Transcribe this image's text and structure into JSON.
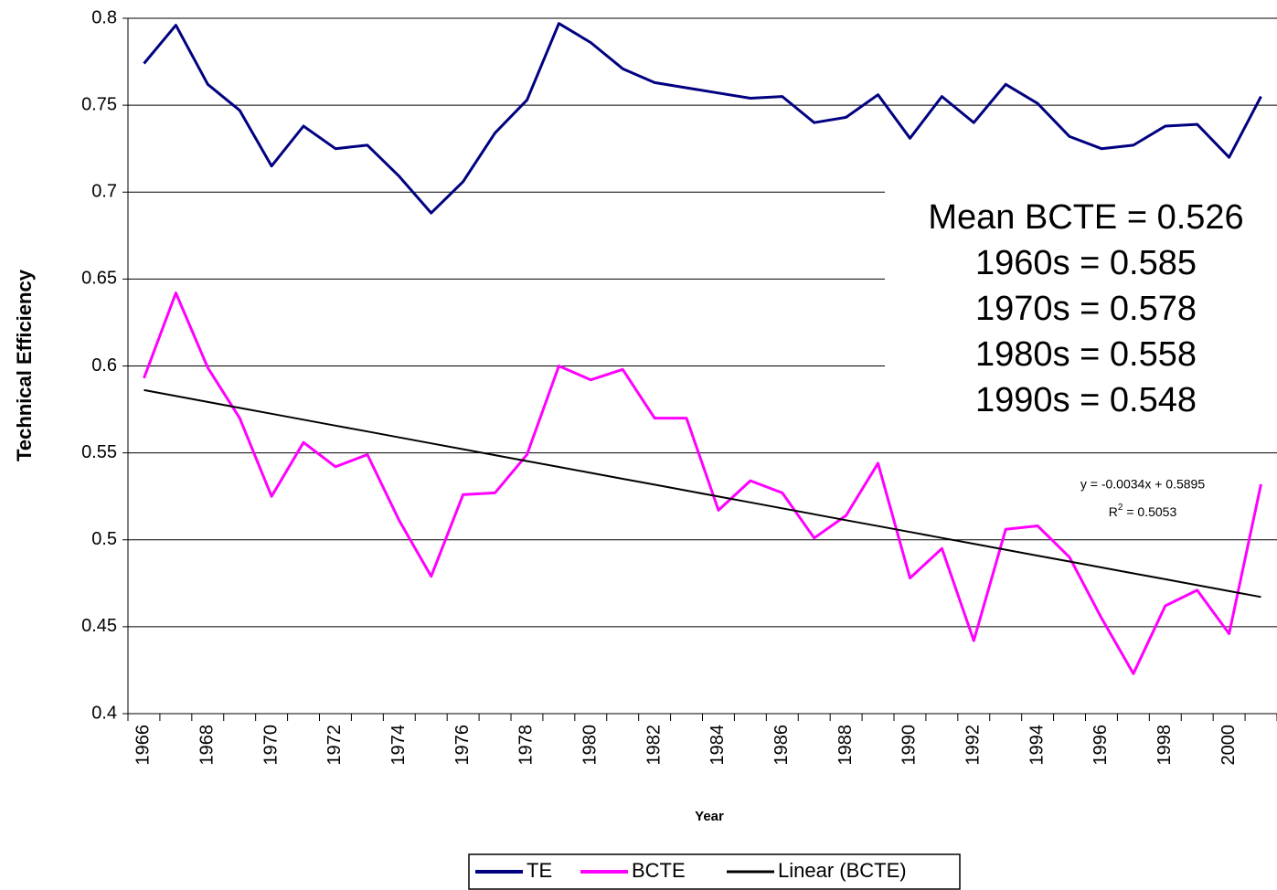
{
  "chart_data": {
    "type": "line",
    "y_label": "Technical Efficiency",
    "x_label": "Year",
    "categories": [
      "1966",
      null,
      "1968",
      null,
      "1970",
      null,
      "1972",
      null,
      "1974",
      null,
      "1976",
      null,
      "1978",
      null,
      "1980",
      null,
      "1982",
      null,
      "1984",
      null,
      "1986",
      null,
      "1988",
      null,
      "1990",
      null,
      "1992",
      null,
      "1994",
      null,
      "1996",
      null,
      "1998",
      null,
      "2000",
      null
    ],
    "series": [
      {
        "name": "TE",
        "color": "#000080",
        "width": 3,
        "values": [
          0.774,
          0.796,
          0.762,
          0.747,
          0.715,
          0.738,
          0.725,
          0.727,
          0.709,
          0.688,
          0.706,
          0.734,
          0.753,
          0.797,
          0.786,
          0.771,
          0.763,
          0.76,
          0.757,
          0.754,
          0.755,
          0.74,
          0.743,
          0.756,
          0.731,
          0.755,
          0.74,
          0.762,
          0.751,
          0.732,
          0.725,
          0.727,
          0.738,
          0.739,
          0.72,
          0.755
        ]
      },
      {
        "name": "BCTE",
        "color": "#ff00ff",
        "width": 3,
        "values": [
          0.593,
          0.642,
          0.599,
          0.57,
          0.525,
          0.556,
          0.542,
          0.549,
          0.511,
          0.479,
          0.526,
          0.527,
          0.549,
          0.6,
          0.592,
          0.598,
          0.57,
          0.57,
          0.517,
          0.534,
          0.527,
          0.501,
          0.514,
          0.544,
          0.478,
          0.495,
          0.442,
          0.506,
          0.508,
          0.49,
          0.455,
          0.423,
          0.462,
          0.471,
          0.446,
          0.532
        ]
      },
      {
        "name": "Linear (BCTE)",
        "color": "#000000",
        "width": 2,
        "values": [
          0.5861,
          0.5827,
          0.5793,
          0.5759,
          0.5725,
          0.5691,
          0.5657,
          0.5623,
          0.5589,
          0.5555,
          0.5521,
          0.5487,
          0.5453,
          0.5419,
          0.5385,
          0.5351,
          0.5317,
          0.5283,
          0.5249,
          0.5215,
          0.5181,
          0.5147,
          0.5113,
          0.5079,
          0.5045,
          0.5011,
          0.4977,
          0.4943,
          0.4909,
          0.4875,
          0.4841,
          0.4807,
          0.4773,
          0.4739,
          0.4705,
          0.4671
        ]
      }
    ],
    "ylim": [
      0.4,
      0.8
    ],
    "yticks": [
      0.4,
      0.45,
      0.5,
      0.55,
      0.6,
      0.65,
      0.7,
      0.75,
      0.8
    ],
    "grid": true,
    "legend": "bottom",
    "annotations": [
      "Mean BCTE = 0.526",
      "1960s = 0.585",
      "1970s = 0.578",
      "1980s = 0.558",
      "1990s = 0.548"
    ],
    "trend_equation": "y = -0.0034x + 0.5895",
    "trend_r2": [
      "R",
      "2",
      " = 0.5053"
    ]
  }
}
